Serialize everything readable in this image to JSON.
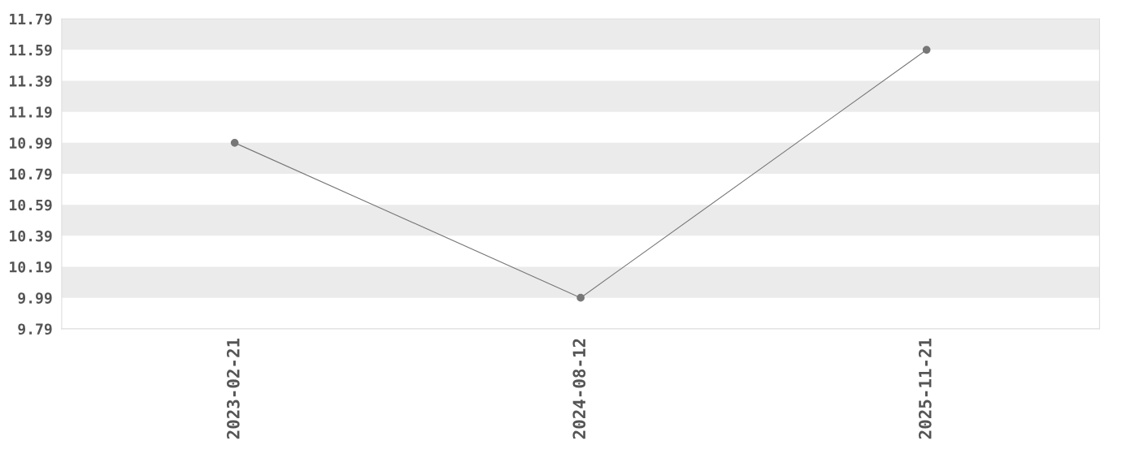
{
  "chart_data": {
    "type": "line",
    "categories": [
      "2023-02-21",
      "2024-08-12",
      "2025-11-21"
    ],
    "series": [
      {
        "color": "#777777",
        "values": [
          10.99,
          9.99,
          11.59
        ]
      }
    ],
    "ylim": [
      9.79,
      11.79
    ],
    "yticks": [
      9.79,
      9.99,
      10.19,
      10.39,
      10.59,
      10.79,
      10.99,
      11.19,
      11.39,
      11.59,
      11.79
    ],
    "bands": [
      {
        "axis": "y",
        "from": 9.99,
        "to": 10.19,
        "color": "#ebebeb"
      },
      {
        "axis": "y",
        "from": 10.39,
        "to": 10.59,
        "color": "#ebebeb"
      },
      {
        "axis": "y",
        "from": 10.79,
        "to": 10.99,
        "color": "#ebebeb"
      },
      {
        "axis": "y",
        "from": 11.19,
        "to": 11.39,
        "color": "#ebebeb"
      },
      {
        "axis": "y",
        "from": 11.59,
        "to": 11.79,
        "color": "#ebebeb"
      }
    ],
    "marker": "circle",
    "line_style": "solid",
    "grid": false,
    "legend": false
  }
}
